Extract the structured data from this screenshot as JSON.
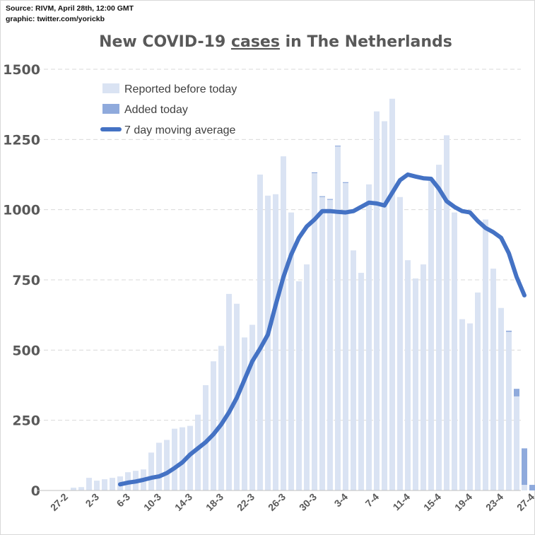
{
  "source_line": "Source: RIVM, April 28th, 12:00 GMT",
  "graphic_line": "graphic: twitter.com/yorickb",
  "colors": {
    "reported": "#dae3f3",
    "added": "#8faadc",
    "average": "#4472c4",
    "grid": "#d9d9d9",
    "text": "#595959"
  },
  "chart_data": {
    "type": "bar",
    "title_parts": [
      "New COVID-19 ",
      "cases",
      " in The Netherlands"
    ],
    "legend": [
      "Reported before today",
      "Added today",
      "7 day moving average"
    ],
    "ylim": [
      0,
      1500
    ],
    "yticks": [
      0,
      250,
      500,
      750,
      1000,
      1250,
      1500
    ],
    "xtick_labels": [
      "27-2",
      "2-3",
      "6-3",
      "10-3",
      "14-3",
      "18-3",
      "22-3",
      "26-3",
      "30-3",
      "3-4",
      "7-4",
      "11-4",
      "15-4",
      "19-4",
      "23-4",
      "27-4"
    ],
    "categories": [
      "27-2",
      "28-2",
      "29-2",
      "1-3",
      "2-3",
      "3-3",
      "4-3",
      "5-3",
      "6-3",
      "7-3",
      "8-3",
      "9-3",
      "10-3",
      "11-3",
      "12-3",
      "13-3",
      "14-3",
      "15-3",
      "16-3",
      "17-3",
      "18-3",
      "19-3",
      "20-3",
      "21-3",
      "22-3",
      "23-3",
      "24-3",
      "25-3",
      "26-3",
      "27-3",
      "28-3",
      "29-3",
      "30-3",
      "31-3",
      "1-4",
      "2-4",
      "3-4",
      "4-4",
      "5-4",
      "6-4",
      "7-4",
      "8-4",
      "9-4",
      "10-4",
      "11-4",
      "12-4",
      "13-4",
      "14-4",
      "15-4",
      "16-4",
      "17-4",
      "18-4",
      "19-4",
      "20-4",
      "21-4",
      "22-4",
      "23-4",
      "24-4",
      "25-4",
      "26-4",
      "27-4",
      "28-4"
    ],
    "series": [
      {
        "name": "Reported before today",
        "values": [
          0,
          10,
          12,
          45,
          35,
          40,
          45,
          50,
          65,
          70,
          75,
          135,
          170,
          180,
          220,
          225,
          230,
          270,
          375,
          460,
          515,
          700,
          665,
          545,
          590,
          1125,
          1050,
          1055,
          1190,
          990,
          745,
          805,
          1130,
          1045,
          1035,
          1225,
          1095,
          855,
          775,
          1090,
          1350,
          1315,
          1395,
          1045,
          820,
          755,
          805,
          1105,
          1160,
          1265,
          990,
          610,
          595,
          705,
          965,
          790,
          650,
          565,
          335,
          20,
          0,
          0
        ]
      },
      {
        "name": "Added today",
        "values": [
          0,
          0,
          0,
          0,
          0,
          0,
          0,
          0,
          0,
          0,
          0,
          0,
          0,
          0,
          0,
          0,
          0,
          0,
          0,
          0,
          0,
          0,
          0,
          0,
          0,
          0,
          0,
          0,
          0,
          0,
          0,
          0,
          3,
          3,
          3,
          3,
          3,
          0,
          0,
          0,
          0,
          0,
          0,
          0,
          0,
          0,
          0,
          0,
          0,
          0,
          0,
          0,
          0,
          0,
          0,
          0,
          0,
          4,
          27,
          130,
          20,
          0
        ]
      },
      {
        "name": "7 day moving average",
        "values": [
          null,
          null,
          null,
          null,
          null,
          null,
          null,
          22,
          28,
          32,
          38,
          45,
          50,
          62,
          80,
          100,
          128,
          150,
          172,
          200,
          235,
          278,
          330,
          395,
          460,
          505,
          555,
          660,
          760,
          840,
          900,
          940,
          965,
          995,
          995,
          992,
          990,
          995,
          1010,
          1025,
          1022,
          1015,
          1060,
          1105,
          1125,
          1118,
          1112,
          1110,
          1075,
          1030,
          1010,
          995,
          990,
          960,
          935,
          920,
          900,
          845,
          760,
          695,
          null,
          null
        ]
      }
    ]
  }
}
